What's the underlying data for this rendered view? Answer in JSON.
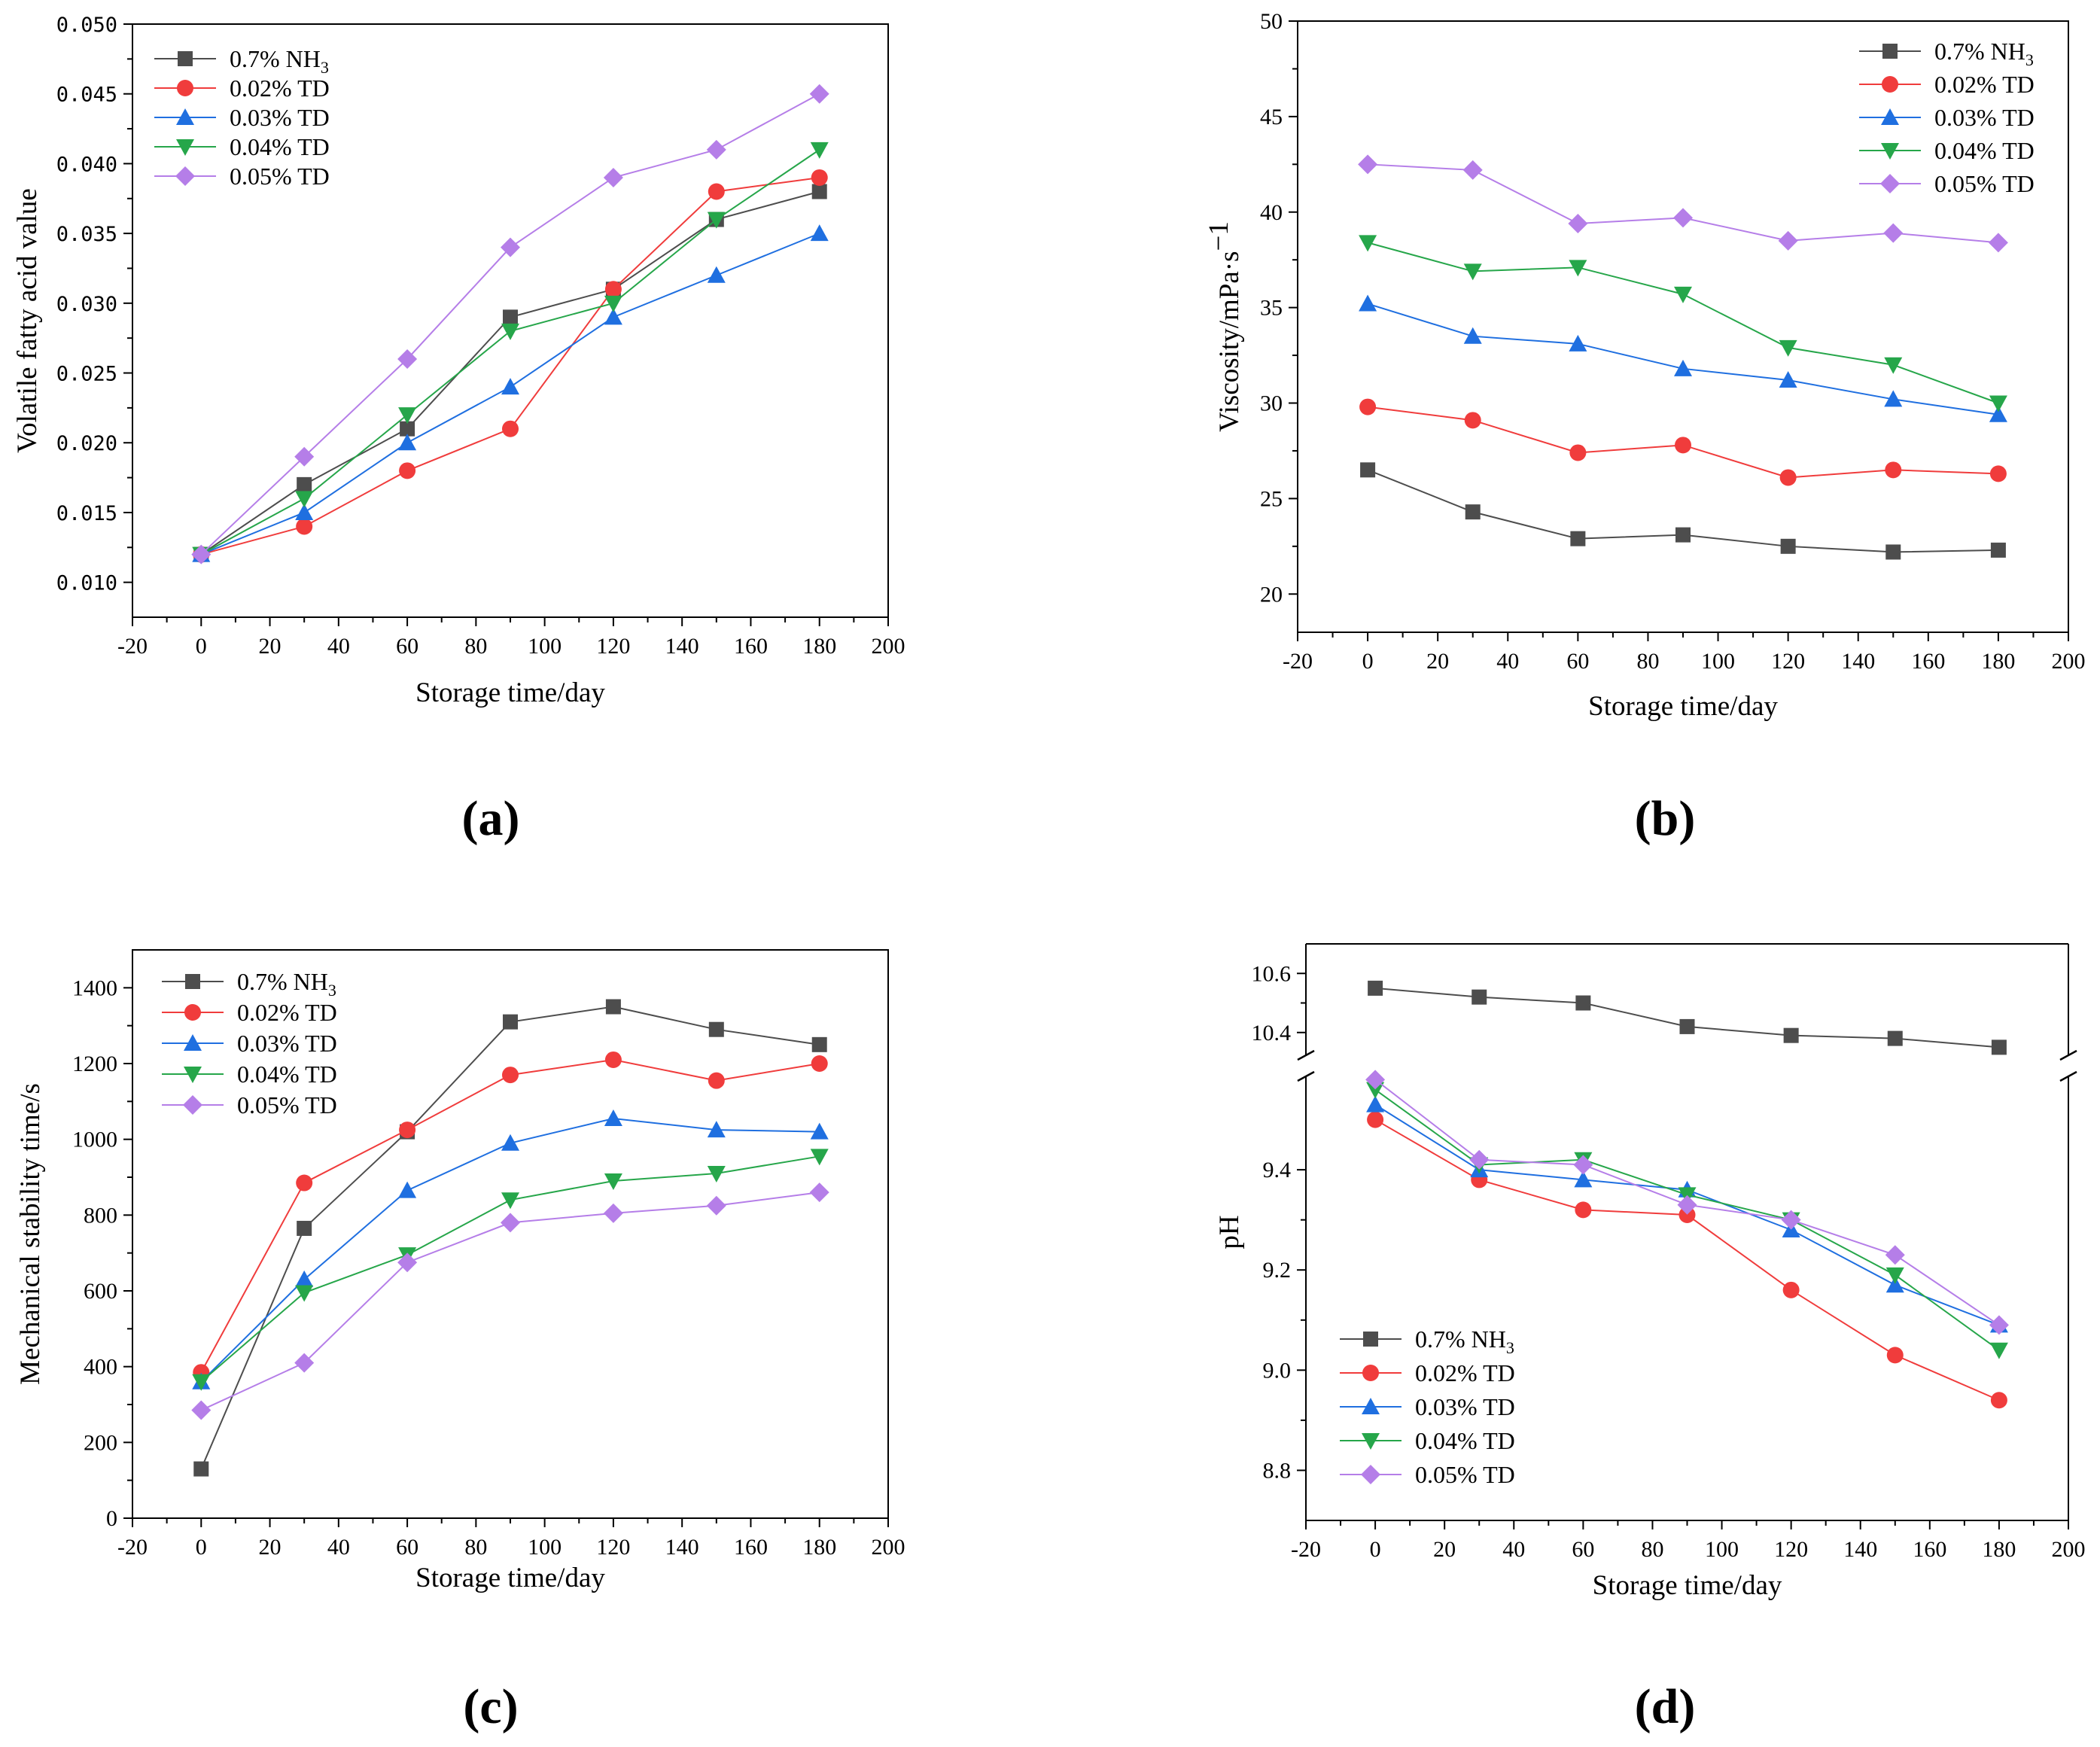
{
  "figure": {
    "panels": [
      "(a)",
      "(b)",
      "(c)",
      "(d)"
    ]
  },
  "chart_data": [
    {
      "type": "line",
      "panel": "(a)",
      "title": "",
      "xlabel": "Storage time/day",
      "ylabel": "Volatile fatty acid value",
      "xlim": [
        -20,
        200
      ],
      "ylim": [
        0.0075,
        0.05
      ],
      "xticks": [
        -20,
        0,
        20,
        40,
        60,
        80,
        100,
        120,
        140,
        160,
        180,
        200
      ],
      "yticks": [
        0.01,
        0.015,
        0.02,
        0.025,
        0.03,
        0.035,
        0.04,
        0.045,
        0.05
      ],
      "ytick_labels": [
        "0.010",
        "0.015",
        "0.020",
        "0.025",
        "0.030",
        "0.035",
        "0.040",
        "0.045",
        "0.050"
      ],
      "legend_position": "top-left",
      "x": [
        0,
        30,
        60,
        90,
        120,
        150,
        180
      ],
      "series": [
        {
          "name": "0.7% NH3",
          "name_main": "0.7% NH",
          "name_sub": "3",
          "color": "#4d4d4d",
          "marker": "square",
          "values": [
            0.012,
            0.017,
            0.021,
            0.029,
            0.031,
            0.036,
            0.038
          ]
        },
        {
          "name": "0.02% TD",
          "color": "#f03c3c",
          "marker": "circle",
          "values": [
            0.012,
            0.014,
            0.018,
            0.021,
            0.031,
            0.038,
            0.039
          ]
        },
        {
          "name": "0.03% TD",
          "color": "#1f6fe0",
          "marker": "triangle-up",
          "values": [
            0.012,
            0.015,
            0.02,
            0.024,
            0.029,
            0.032,
            0.035
          ]
        },
        {
          "name": "0.04% TD",
          "color": "#26a64a",
          "marker": "triangle-down",
          "values": [
            0.012,
            0.016,
            0.022,
            0.028,
            0.03,
            0.036,
            0.041
          ]
        },
        {
          "name": "0.05% TD",
          "color": "#b57ee8",
          "marker": "diamond",
          "values": [
            0.012,
            0.019,
            0.026,
            0.034,
            0.039,
            0.041,
            0.045
          ]
        }
      ]
    },
    {
      "type": "line",
      "panel": "(b)",
      "title": "",
      "xlabel": "Storage time/day",
      "ylabel": "Viscosity/mPa·s",
      "ylabel_sup": "−1",
      "xlim": [
        -20,
        200
      ],
      "ylim": [
        18,
        50
      ],
      "xticks": [
        -20,
        0,
        20,
        40,
        60,
        80,
        100,
        120,
        140,
        160,
        180,
        200
      ],
      "yticks": [
        20,
        25,
        30,
        35,
        40,
        45,
        50
      ],
      "ytick_labels": [
        "20",
        "25",
        "30",
        "35",
        "40",
        "45",
        "50"
      ],
      "legend_position": "top-right",
      "x": [
        0,
        30,
        60,
        90,
        120,
        150,
        180
      ],
      "series": [
        {
          "name": "0.7% NH3",
          "name_main": "0.7% NH",
          "name_sub": "3",
          "color": "#4d4d4d",
          "marker": "square",
          "values": [
            26.5,
            24.3,
            22.9,
            23.1,
            22.5,
            22.2,
            22.3
          ]
        },
        {
          "name": "0.02% TD",
          "color": "#f03c3c",
          "marker": "circle",
          "values": [
            29.8,
            29.1,
            27.4,
            27.8,
            26.1,
            26.5,
            26.3
          ]
        },
        {
          "name": "0.03% TD",
          "color": "#1f6fe0",
          "marker": "triangle-up",
          "values": [
            35.2,
            33.5,
            33.1,
            31.8,
            31.2,
            30.2,
            29.4
          ]
        },
        {
          "name": "0.04% TD",
          "color": "#26a64a",
          "marker": "triangle-down",
          "values": [
            38.4,
            36.9,
            37.1,
            35.7,
            32.9,
            32.0,
            30.0
          ]
        },
        {
          "name": "0.05% TD",
          "color": "#b57ee8",
          "marker": "diamond",
          "values": [
            42.5,
            42.2,
            39.4,
            39.7,
            38.5,
            38.9,
            38.4
          ]
        }
      ]
    },
    {
      "type": "line",
      "panel": "(c)",
      "title": "",
      "xlabel": "Storage time/day",
      "ylabel": "Mechanical stability time/s",
      "xlim": [
        -20,
        200
      ],
      "ylim": [
        0,
        1500
      ],
      "xticks": [
        -20,
        0,
        20,
        40,
        60,
        80,
        100,
        120,
        140,
        160,
        180,
        200
      ],
      "yticks": [
        0,
        200,
        400,
        600,
        800,
        1000,
        1200,
        1400
      ],
      "ytick_labels": [
        "0",
        "200",
        "400",
        "600",
        "800",
        "1000",
        "1200",
        "1400"
      ],
      "legend_position": "top-left",
      "x": [
        0,
        30,
        60,
        90,
        120,
        150,
        180
      ],
      "series": [
        {
          "name": "0.7% NH3",
          "name_main": "0.7% NH",
          "name_sub": "3",
          "color": "#4d4d4d",
          "marker": "square",
          "values": [
            130,
            765,
            1020,
            1310,
            1350,
            1290,
            1250
          ]
        },
        {
          "name": "0.02% TD",
          "color": "#f03c3c",
          "marker": "circle",
          "values": [
            385,
            885,
            1025,
            1170,
            1210,
            1155,
            1200
          ]
        },
        {
          "name": "0.03% TD",
          "color": "#1f6fe0",
          "marker": "triangle-up",
          "values": [
            360,
            630,
            865,
            990,
            1055,
            1025,
            1020
          ]
        },
        {
          "name": "0.04% TD",
          "color": "#26a64a",
          "marker": "triangle-down",
          "values": [
            360,
            595,
            695,
            840,
            890,
            910,
            955
          ]
        },
        {
          "name": "0.05% TD",
          "color": "#b57ee8",
          "marker": "diamond",
          "values": [
            285,
            410,
            675,
            780,
            805,
            825,
            860
          ]
        }
      ]
    },
    {
      "type": "line",
      "panel": "(d)",
      "title": "",
      "xlabel": "Storage time/day",
      "ylabel": "pH",
      "xlim": [
        -20,
        200
      ],
      "ylim_lower": [
        8.7,
        9.6
      ],
      "ylim_upper": [
        10.3,
        10.7
      ],
      "axis_break": true,
      "xticks": [
        -20,
        0,
        20,
        40,
        60,
        80,
        100,
        120,
        140,
        160,
        180,
        200
      ],
      "yticks_lower": [
        8.8,
        9.0,
        9.2,
        9.4
      ],
      "ytick_labels_lower": [
        "8.8",
        "9.0",
        "9.2",
        "9.4"
      ],
      "yticks_upper": [
        10.4,
        10.6
      ],
      "ytick_labels_upper": [
        "10.4",
        "10.6"
      ],
      "legend_position": "bottom-left",
      "x": [
        0,
        30,
        60,
        90,
        120,
        150,
        180
      ],
      "series": [
        {
          "name": "0.7% NH3",
          "name_main": "0.7% NH",
          "name_sub": "3",
          "color": "#4d4d4d",
          "marker": "square",
          "values": [
            10.55,
            10.52,
            10.5,
            10.42,
            10.39,
            10.38,
            10.35
          ]
        },
        {
          "name": "0.02% TD",
          "color": "#f03c3c",
          "marker": "circle",
          "values": [
            9.5,
            9.38,
            9.32,
            9.31,
            9.16,
            9.03,
            8.94
          ]
        },
        {
          "name": "0.03% TD",
          "color": "#1f6fe0",
          "marker": "triangle-up",
          "values": [
            9.53,
            9.4,
            9.38,
            9.36,
            9.28,
            9.17,
            9.09
          ]
        },
        {
          "name": "0.04% TD",
          "color": "#26a64a",
          "marker": "triangle-down",
          "values": [
            9.56,
            9.41,
            9.42,
            9.35,
            9.3,
            9.19,
            9.04
          ]
        },
        {
          "name": "0.05% TD",
          "color": "#b57ee8",
          "marker": "diamond",
          "values": [
            9.58,
            9.42,
            9.41,
            9.33,
            9.3,
            9.23,
            9.09
          ]
        }
      ]
    }
  ]
}
